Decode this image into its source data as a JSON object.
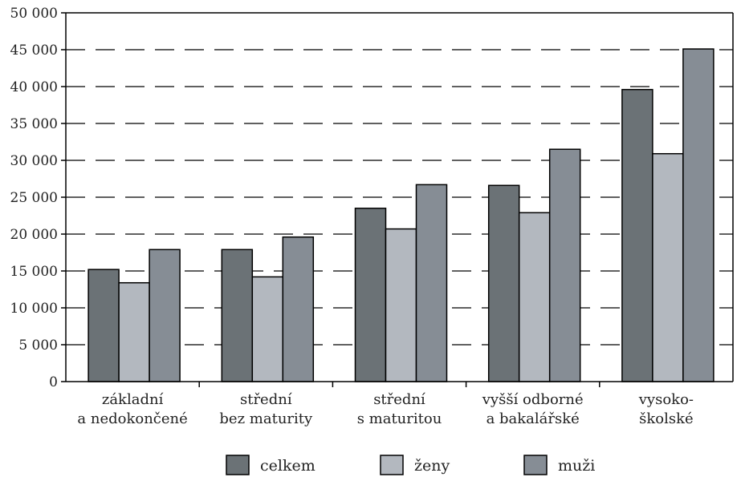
{
  "chart_data": {
    "type": "bar",
    "categories": [
      [
        "základní",
        "a nedokončené"
      ],
      [
        "střední",
        "bez maturity"
      ],
      [
        "střední",
        "s maturitou"
      ],
      [
        "vyšší odborné",
        "a bakalářské"
      ],
      [
        "vysoko-",
        "školské"
      ]
    ],
    "series": [
      {
        "name": "celkem",
        "color": "#6b7276",
        "values": [
          15200,
          17900,
          23500,
          26600,
          39600
        ]
      },
      {
        "name": "ženy",
        "color": "#b3b8bf",
        "values": [
          13400,
          14200,
          20700,
          22900,
          30900
        ]
      },
      {
        "name": "muži",
        "color": "#868d95",
        "values": [
          17900,
          19600,
          26700,
          31500,
          45100
        ]
      }
    ],
    "ylim": [
      0,
      50000
    ],
    "yticks": [
      0,
      5000,
      10000,
      15000,
      20000,
      25000,
      30000,
      35000,
      40000,
      45000,
      50000
    ],
    "ytick_labels": [
      "0",
      "5 000",
      "10 000",
      "15 000",
      "20 000",
      "25 000",
      "30 000",
      "35 000",
      "40 000",
      "45 000",
      "50 000"
    ],
    "grid": "dashed horizontal",
    "legend": "bottom"
  }
}
